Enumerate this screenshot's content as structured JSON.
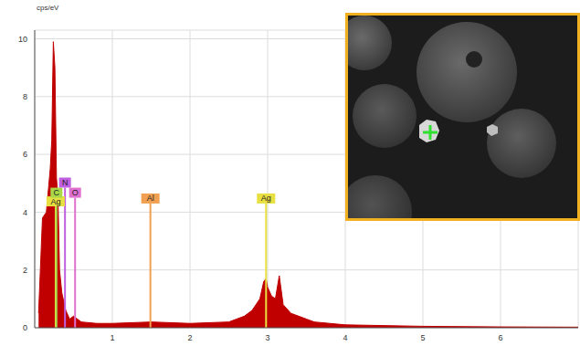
{
  "chart_data": {
    "type": "area",
    "y_label": "cps/eV",
    "x": [
      0.05,
      0.1,
      0.15,
      0.2,
      0.22,
      0.24,
      0.26,
      0.28,
      0.3,
      0.32,
      0.35,
      0.4,
      0.45,
      0.5,
      0.55,
      0.6,
      0.8,
      1.0,
      1.5,
      2.0,
      2.5,
      2.6,
      2.7,
      2.8,
      2.9,
      2.95,
      2.98,
      3.0,
      3.05,
      3.1,
      3.15,
      3.2,
      3.3,
      3.4,
      3.5,
      3.6,
      4.0,
      5.0,
      6.0,
      7.0
    ],
    "values": [
      0.5,
      3.8,
      4.0,
      5.5,
      6.5,
      9.9,
      9.0,
      5.2,
      4.5,
      2.0,
      1.2,
      0.6,
      0.3,
      0.4,
      0.3,
      0.2,
      0.15,
      0.15,
      0.2,
      0.15,
      0.2,
      0.3,
      0.4,
      0.6,
      1.0,
      1.6,
      1.7,
      1.4,
      1.1,
      1.0,
      1.8,
      0.8,
      0.5,
      0.4,
      0.3,
      0.2,
      0.1,
      0.05,
      0.03,
      0.02
    ],
    "color": "#c00000",
    "xlim": [
      0,
      7
    ],
    "xticks": [
      1,
      2,
      3,
      4,
      5,
      6
    ],
    "ylim": [
      0,
      10.3
    ],
    "yticks": [
      0,
      2,
      4,
      6,
      8,
      10
    ],
    "grid": true,
    "markers": [
      {
        "label": "Ag",
        "x": 0.27,
        "y": 4.2,
        "color": "#e8e040"
      },
      {
        "label": "C",
        "x": 0.28,
        "y": 4.5,
        "color": "#a8d848"
      },
      {
        "label": "N",
        "x": 0.39,
        "y": 4.85,
        "color": "#c060e0"
      },
      {
        "label": "O",
        "x": 0.52,
        "y": 4.5,
        "color": "#e070d0"
      },
      {
        "label": "Al",
        "x": 1.49,
        "y": 4.3,
        "color": "#f0a050"
      },
      {
        "label": "Ag",
        "x": 2.98,
        "y": 4.3,
        "color": "#e8e040"
      }
    ]
  }
}
